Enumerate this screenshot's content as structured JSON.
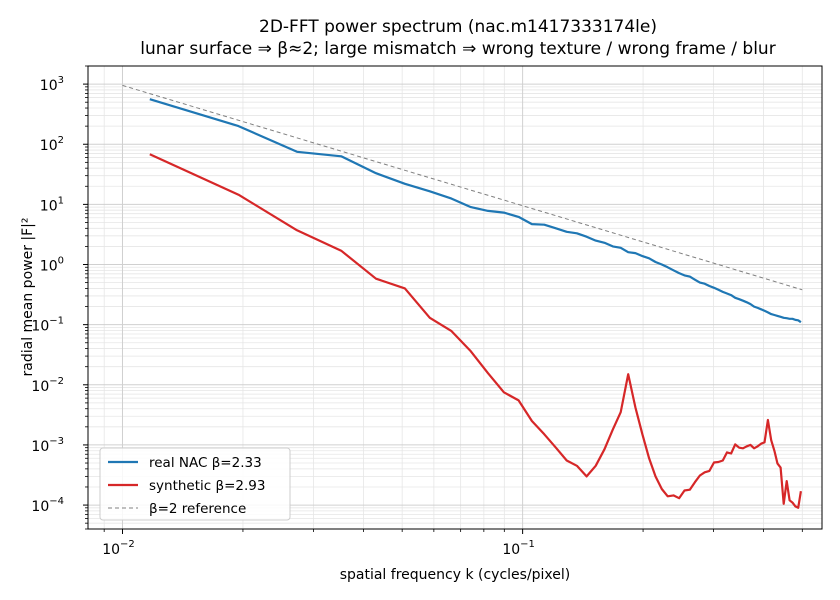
{
  "chart_data": {
    "type": "line",
    "title": "2D-FFT power spectrum  (nac.m1417333174le)",
    "subtitle": "lunar surface ⇒ β≈2; large mismatch ⇒ wrong texture / wrong frame / blur",
    "xlabel": "spatial frequency k (cycles/pixel)",
    "ylabel": "radial mean power |F|²",
    "xscale": "log",
    "yscale": "log",
    "xlim": [
      0.0082,
      0.56
    ],
    "ylim": [
      4e-05,
      2000
    ],
    "grid": true,
    "legend_position": "lower-left",
    "x_ticks": [
      {
        "value": 0.01,
        "base": "10",
        "exp": "−2"
      },
      {
        "value": 0.1,
        "base": "10",
        "exp": "−1"
      }
    ],
    "y_ticks": [
      {
        "value": 0.0001,
        "base": "10",
        "exp": "−4"
      },
      {
        "value": 0.001,
        "base": "10",
        "exp": "−3"
      },
      {
        "value": 0.01,
        "base": "10",
        "exp": "−2"
      },
      {
        "value": 0.1,
        "base": "10",
        "exp": "−1"
      },
      {
        "value": 1,
        "base": "10",
        "exp": "0"
      },
      {
        "value": 10,
        "base": "10",
        "exp": "1"
      },
      {
        "value": 100,
        "base": "10",
        "exp": "2"
      },
      {
        "value": 1000,
        "base": "10",
        "exp": "3"
      }
    ],
    "series": [
      {
        "name": "real NAC  β=2.33",
        "color": "#1f77b4",
        "style": "solid",
        "x": [
          0.0117,
          0.0195,
          0.0273,
          0.0352,
          0.043,
          0.0508,
          0.0586,
          0.0664,
          0.0742,
          0.082,
          0.0898,
          0.0977,
          0.1055,
          0.1133,
          0.1211,
          0.1289,
          0.1367,
          0.1445,
          0.1523,
          0.1602,
          0.168,
          0.1758,
          0.1836,
          0.1914,
          0.1992,
          0.207,
          0.2148,
          0.2227,
          0.2305,
          0.2383,
          0.2461,
          0.2539,
          0.2617,
          0.2695,
          0.2773,
          0.2852,
          0.293,
          0.3008,
          0.3086,
          0.3164,
          0.3242,
          0.332,
          0.3398,
          0.3477,
          0.3555,
          0.3633,
          0.3711,
          0.3789,
          0.3867,
          0.3945,
          0.4023,
          0.4102,
          0.418,
          0.4258,
          0.4336,
          0.4414,
          0.4492,
          0.457,
          0.4648,
          0.4727,
          0.4805,
          0.4883,
          0.4961
        ],
        "y": [
          560,
          200,
          75,
          63,
          33,
          22,
          16.5,
          12.5,
          9,
          7.8,
          7.3,
          6.2,
          4.7,
          4.6,
          4.0,
          3.5,
          3.3,
          2.9,
          2.5,
          2.3,
          2.0,
          1.9,
          1.6,
          1.55,
          1.38,
          1.27,
          1.1,
          1.0,
          0.9,
          0.8,
          0.72,
          0.66,
          0.63,
          0.56,
          0.5,
          0.48,
          0.44,
          0.41,
          0.38,
          0.35,
          0.33,
          0.31,
          0.28,
          0.265,
          0.25,
          0.235,
          0.22,
          0.2,
          0.19,
          0.18,
          0.17,
          0.16,
          0.15,
          0.145,
          0.14,
          0.135,
          0.13,
          0.128,
          0.125,
          0.125,
          0.12,
          0.118,
          0.11
        ]
      },
      {
        "name": "synthetic  β=2.93",
        "color": "#d62728",
        "style": "solid",
        "x": [
          0.0117,
          0.0195,
          0.0273,
          0.0352,
          0.043,
          0.0508,
          0.0586,
          0.0664,
          0.0742,
          0.082,
          0.0898,
          0.0977,
          0.1055,
          0.1133,
          0.1211,
          0.1289,
          0.1367,
          0.1445,
          0.1523,
          0.1602,
          0.168,
          0.1758,
          0.1836,
          0.1914,
          0.1992,
          0.207,
          0.2148,
          0.2227,
          0.2305,
          0.2383,
          0.2461,
          0.2539,
          0.2617,
          0.2695,
          0.2773,
          0.2852,
          0.293,
          0.3008,
          0.3086,
          0.3164,
          0.3242,
          0.332,
          0.3398,
          0.3477,
          0.3555,
          0.3633,
          0.3711,
          0.3789,
          0.3867,
          0.3945,
          0.4023,
          0.4102,
          0.418,
          0.4258,
          0.4336,
          0.4414,
          0.4492,
          0.457,
          0.4648,
          0.4727,
          0.4805,
          0.4883,
          0.4961
        ],
        "y": [
          68,
          14.5,
          3.7,
          1.7,
          0.58,
          0.4,
          0.13,
          0.078,
          0.036,
          0.0155,
          0.0075,
          0.0055,
          0.0025,
          0.0015,
          0.0009,
          0.00055,
          0.00045,
          0.0003,
          0.00045,
          0.00085,
          0.0018,
          0.0035,
          0.015,
          0.0042,
          0.0015,
          0.0006,
          0.0003,
          0.000185,
          0.00014,
          0.000145,
          0.00013,
          0.000175,
          0.00018,
          0.00024,
          0.00031,
          0.00035,
          0.00037,
          0.00051,
          0.00052,
          0.00055,
          0.00075,
          0.00072,
          0.00102,
          0.0009,
          0.00088,
          0.00095,
          0.001,
          0.00088,
          0.00095,
          0.00105,
          0.0011,
          0.0026,
          0.0012,
          0.0008,
          0.00049,
          0.00042,
          0.000105,
          0.00025,
          0.00012,
          0.00011,
          9.5e-05,
          9e-05,
          0.00017
        ]
      },
      {
        "name": "β=2 reference",
        "color": "#808080",
        "style": "dashed",
        "x": [
          0.01,
          0.5
        ],
        "y": [
          950,
          0.38
        ]
      }
    ]
  }
}
